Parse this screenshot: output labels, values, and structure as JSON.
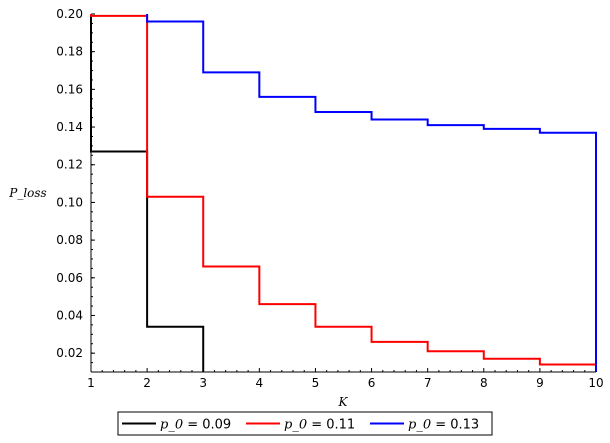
{
  "chart_data": {
    "type": "line",
    "step": true,
    "xlabel": "K",
    "ylabel": "P_loss",
    "xlim": [
      1,
      10
    ],
    "ylim": [
      0.01,
      0.2
    ],
    "xticks": [
      1,
      2,
      3,
      4,
      5,
      6,
      7,
      8,
      9,
      10
    ],
    "yticks": [
      0.02,
      0.04,
      0.06,
      0.08,
      0.1,
      0.12,
      0.14,
      0.16,
      0.18,
      0.2
    ],
    "ytick_labels": [
      "0.02",
      "0.04",
      "0.06",
      "0.08",
      "0.10",
      "0.12",
      "0.14",
      "0.16",
      "0.18",
      "0.20"
    ],
    "legend_position": "bottom",
    "series": [
      {
        "name_italic": "p_0",
        "name_value": " = 0.09",
        "color": "#000000",
        "x": [
          1,
          2,
          3
        ],
        "y": [
          0.127,
          0.034,
          0.0
        ]
      },
      {
        "name_italic": "p_0",
        "name_value": " = 0.11",
        "color": "#ff0000",
        "x": [
          1,
          2,
          3,
          4,
          5,
          6,
          7,
          8,
          9,
          10
        ],
        "y": [
          0.199,
          0.103,
          0.066,
          0.046,
          0.034,
          0.026,
          0.021,
          0.017,
          0.014,
          0.0
        ]
      },
      {
        "name_italic": "p_0",
        "name_value": " = 0.13",
        "color": "#0000ff",
        "x": [
          2,
          3,
          4,
          5,
          6,
          7,
          8,
          9,
          10
        ],
        "y": [
          0.196,
          0.169,
          0.156,
          0.148,
          0.144,
          0.141,
          0.139,
          0.137,
          0.0
        ]
      }
    ]
  }
}
